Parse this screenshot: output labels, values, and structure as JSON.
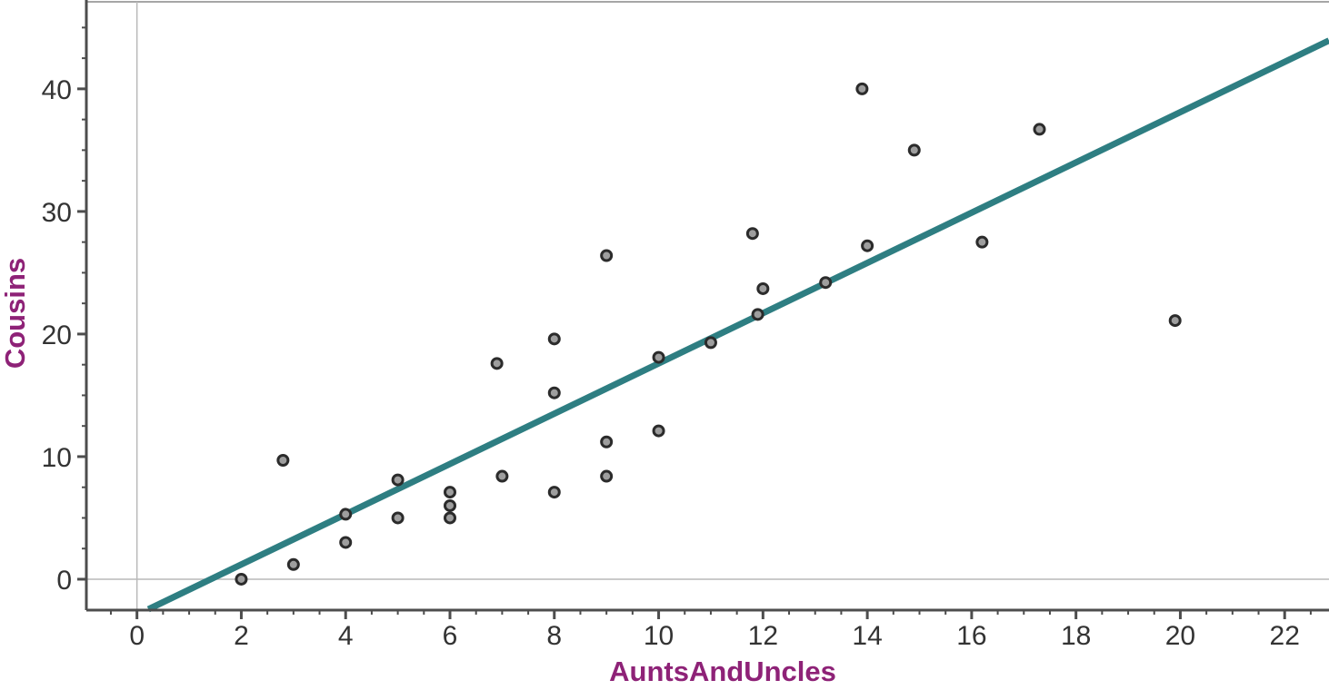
{
  "chart_data": {
    "type": "scatter",
    "title": "",
    "xlabel": "AuntsAndUncles",
    "ylabel": "Cousins",
    "xlim": [
      -0.97,
      22.85
    ],
    "ylim": [
      -2.52,
      47.1
    ],
    "x_major_ticks": [
      0,
      2,
      4,
      6,
      8,
      10,
      12,
      14,
      16,
      18,
      20,
      22
    ],
    "x_minor_step": 0.5,
    "y_major_ticks": [
      0,
      10,
      20,
      30,
      40
    ],
    "y_minor_step": 2.5,
    "grid": {
      "vertical_line_at_x": 0,
      "horizontal_line_at_y": 0,
      "full_grid": false
    },
    "legend": "none",
    "points": [
      [
        2,
        0
      ],
      [
        2.8,
        9.7
      ],
      [
        3,
        1.2
      ],
      [
        4,
        5.3
      ],
      [
        4,
        3
      ],
      [
        5,
        8.1
      ],
      [
        5,
        5
      ],
      [
        6,
        7.1
      ],
      [
        6,
        6
      ],
      [
        6,
        5
      ],
      [
        6.9,
        17.6
      ],
      [
        7,
        8.4
      ],
      [
        8,
        19.6
      ],
      [
        8,
        15.2
      ],
      [
        8,
        7.1
      ],
      [
        9,
        26.4
      ],
      [
        9,
        11.2
      ],
      [
        9,
        8.4
      ],
      [
        10,
        18.1
      ],
      [
        10,
        12.1
      ],
      [
        11,
        19.3
      ],
      [
        11.8,
        28.2
      ],
      [
        12,
        23.7
      ],
      [
        11.9,
        21.6
      ],
      [
        13.2,
        24.2
      ],
      [
        13.9,
        40
      ],
      [
        14,
        27.2
      ],
      [
        14.9,
        35
      ],
      [
        16.2,
        27.5
      ],
      [
        17.3,
        36.7
      ],
      [
        19.9,
        21.1
      ]
    ],
    "trend_line": {
      "slope": 2.05,
      "intercept": -2.9,
      "style": "movable-line"
    },
    "colors": {
      "background": "#ffffff",
      "axis_line": "#4d4d4d",
      "grid_line": "#b9b9b9",
      "top_border": "#a6a6a6",
      "tick_label": "#333333",
      "axis_label": "#8e2277",
      "trend_line": "#2e7e82",
      "point_stroke": "#2b2b2b",
      "point_fill": "#9e9e9e"
    }
  }
}
